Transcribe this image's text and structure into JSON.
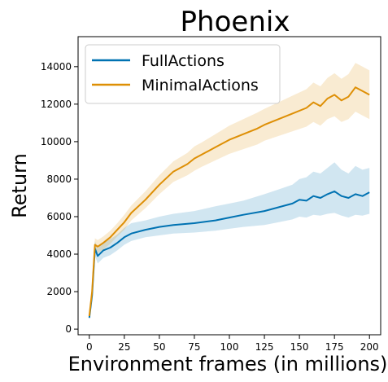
{
  "chart_data": {
    "type": "line",
    "title": "Phoenix",
    "xlabel": "Environment frames (in millions)",
    "ylabel": "Return",
    "xlim": [
      -8,
      208
    ],
    "ylim": [
      -300,
      15600
    ],
    "xticks": [
      0,
      25,
      50,
      75,
      100,
      125,
      150,
      175,
      200
    ],
    "yticks": [
      0,
      2000,
      4000,
      6000,
      8000,
      10000,
      12000,
      14000
    ],
    "xtick_labels": [
      "0",
      "25",
      "50",
      "75",
      "100",
      "125",
      "150",
      "175",
      "200"
    ],
    "ytick_labels": [
      "0",
      "2000",
      "4000",
      "6000",
      "8000",
      "10000",
      "12000",
      "14000"
    ],
    "legend_position": "top-left",
    "grid": false,
    "series": [
      {
        "name": "FullActions",
        "color": "#0072b2",
        "x": [
          0,
          2,
          4,
          6,
          10,
          15,
          20,
          25,
          30,
          40,
          50,
          60,
          75,
          90,
          100,
          110,
          125,
          135,
          145,
          150,
          155,
          160,
          165,
          170,
          175,
          180,
          185,
          190,
          195,
          200
        ],
        "y": [
          600,
          1800,
          4300,
          3900,
          4200,
          4350,
          4600,
          4900,
          5100,
          5300,
          5450,
          5550,
          5650,
          5800,
          5950,
          6100,
          6300,
          6500,
          6700,
          6900,
          6850,
          7100,
          7000,
          7200,
          7350,
          7100,
          7000,
          7200,
          7100,
          7300
        ],
        "band_lower": [
          550,
          1600,
          3900,
          3500,
          3800,
          3950,
          4200,
          4500,
          4700,
          4900,
          5000,
          5100,
          5150,
          5250,
          5350,
          5450,
          5550,
          5700,
          5850,
          6000,
          5950,
          6100,
          6050,
          6150,
          6200,
          6050,
          5950,
          6100,
          6050,
          6150
        ],
        "band_upper": [
          650,
          2000,
          4700,
          4300,
          4650,
          4800,
          5050,
          5400,
          5650,
          5800,
          6000,
          6150,
          6300,
          6550,
          6700,
          6850,
          7200,
          7450,
          7700,
          8000,
          8100,
          8400,
          8300,
          8600,
          8900,
          8500,
          8300,
          8700,
          8500,
          8600
        ]
      },
      {
        "name": "MinimalActions",
        "color": "#de8f05",
        "x": [
          0,
          2,
          4,
          6,
          10,
          15,
          20,
          25,
          30,
          40,
          50,
          60,
          70,
          75,
          80,
          90,
          100,
          110,
          120,
          125,
          135,
          145,
          155,
          160,
          165,
          170,
          175,
          180,
          185,
          190,
          195,
          200
        ],
        "y": [
          700,
          2000,
          4500,
          4400,
          4600,
          4900,
          5300,
          5700,
          6200,
          6900,
          7700,
          8400,
          8800,
          9100,
          9300,
          9700,
          10100,
          10400,
          10700,
          10900,
          11200,
          11500,
          11800,
          12100,
          11900,
          12300,
          12500,
          12200,
          12400,
          12900,
          12700,
          12500
        ],
        "band_lower": [
          650,
          1800,
          4150,
          4050,
          4250,
          4550,
          4950,
          5300,
          5800,
          6450,
          7200,
          7850,
          8200,
          8450,
          8650,
          9000,
          9350,
          9600,
          9850,
          10050,
          10300,
          10550,
          10800,
          11050,
          10850,
          11200,
          11350,
          11050,
          11200,
          11600,
          11400,
          11200
        ],
        "band_upper": [
          750,
          2200,
          4850,
          4750,
          4950,
          5250,
          5650,
          6100,
          6600,
          7350,
          8200,
          8950,
          9400,
          9750,
          9950,
          10400,
          10850,
          11200,
          11550,
          11750,
          12100,
          12450,
          12800,
          13150,
          12950,
          13400,
          13650,
          13350,
          13600,
          14200,
          14000,
          13800
        ]
      }
    ]
  }
}
